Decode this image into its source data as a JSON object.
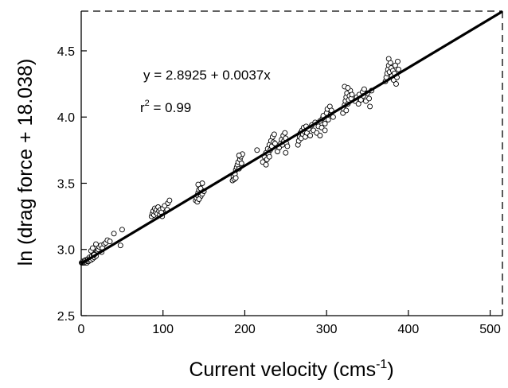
{
  "chart_data": {
    "type": "scatter",
    "xlabel": "Current velocity (cms",
    "xlabel_sup": "-1",
    "xlabel_end": ")",
    "ylabel": "ln (drag force + 18.038)",
    "xlim": [
      0,
      515
    ],
    "ylim": [
      2.5,
      4.8
    ],
    "x_ticks": [
      0,
      100,
      200,
      300,
      400,
      500
    ],
    "y_ticks": [
      2.5,
      3.0,
      3.5,
      4.0,
      4.5
    ],
    "x_tick_labels": [
      "0",
      "100",
      "200",
      "300",
      "400",
      "500"
    ],
    "y_tick_labels": [
      "2.5",
      "3.0",
      "3.5",
      "4.0",
      "4.5"
    ],
    "annotations": {
      "equation": "y = 2.8925 + 0.0037x",
      "r2_prefix": "r",
      "r2_sup": "2",
      "r2_value": " = 0.99"
    },
    "regression": {
      "intercept": 2.8925,
      "slope": 0.0037
    },
    "series": [
      {
        "style": "open-circle",
        "points": [
          [
            0.5,
            2.9
          ],
          [
            1,
            2.9
          ],
          [
            1.5,
            2.9
          ],
          [
            2,
            2.91
          ],
          [
            2.5,
            2.9
          ],
          [
            3,
            2.9
          ],
          [
            3.5,
            2.91
          ],
          [
            4,
            2.9
          ],
          [
            4.5,
            2.91
          ],
          [
            5,
            2.92
          ],
          [
            5.5,
            2.9
          ],
          [
            6,
            2.91
          ],
          [
            6.5,
            2.92
          ],
          [
            7,
            2.9
          ],
          [
            7.5,
            2.91
          ],
          [
            8,
            2.92
          ],
          [
            8.5,
            2.93
          ],
          [
            9,
            2.91
          ],
          [
            9.5,
            2.92
          ],
          [
            10,
            2.94
          ],
          [
            11,
            2.93
          ],
          [
            12,
            2.92
          ],
          [
            13,
            2.95
          ],
          [
            14,
            2.93
          ],
          [
            15,
            2.96
          ],
          [
            16,
            2.94
          ],
          [
            17,
            2.97
          ],
          [
            18,
            2.95
          ],
          [
            19,
            2.98
          ],
          [
            20,
            2.99
          ],
          [
            21,
            3.0
          ],
          [
            22,
            3.02
          ],
          [
            24,
            3.03
          ],
          [
            26,
            3.01
          ],
          [
            28,
            3.04
          ],
          [
            30,
            3.05
          ],
          [
            32,
            3.07
          ],
          [
            35,
            3.06
          ],
          [
            40,
            3.12
          ],
          [
            48,
            3.03
          ],
          [
            50,
            3.15
          ],
          [
            12,
            2.99
          ],
          [
            14,
            3.01
          ],
          [
            16,
            2.96
          ],
          [
            18,
            3.04
          ],
          [
            25,
            2.98
          ],
          [
            86,
            3.25
          ],
          [
            87,
            3.27
          ],
          [
            88,
            3.29
          ],
          [
            89,
            3.26
          ],
          [
            90,
            3.31
          ],
          [
            91,
            3.28
          ],
          [
            92,
            3.3
          ],
          [
            93,
            3.27
          ],
          [
            94,
            3.32
          ],
          [
            95,
            3.29
          ],
          [
            96,
            3.26
          ],
          [
            97,
            3.3
          ],
          [
            98,
            3.28
          ],
          [
            100,
            3.31
          ],
          [
            102,
            3.33
          ],
          [
            104,
            3.29
          ],
          [
            106,
            3.35
          ],
          [
            108,
            3.37
          ],
          [
            105,
            3.3
          ],
          [
            99,
            3.25
          ],
          [
            140,
            3.37
          ],
          [
            141,
            3.39
          ],
          [
            142,
            3.41
          ],
          [
            143,
            3.43
          ],
          [
            144,
            3.45
          ],
          [
            145,
            3.48
          ],
          [
            146,
            3.4
          ],
          [
            147,
            3.44
          ],
          [
            148,
            3.5
          ],
          [
            142,
            3.36
          ],
          [
            144,
            3.38
          ],
          [
            146,
            3.46
          ],
          [
            148,
            3.42
          ],
          [
            150,
            3.44
          ],
          [
            143,
            3.49
          ],
          [
            185,
            3.52
          ],
          [
            186,
            3.55
          ],
          [
            187,
            3.53
          ],
          [
            188,
            3.57
          ],
          [
            189,
            3.6
          ],
          [
            190,
            3.62
          ],
          [
            191,
            3.64
          ],
          [
            192,
            3.66
          ],
          [
            193,
            3.61
          ],
          [
            194,
            3.68
          ],
          [
            195,
            3.7
          ],
          [
            196,
            3.65
          ],
          [
            197,
            3.72
          ],
          [
            193,
            3.71
          ],
          [
            189,
            3.54
          ],
          [
            222,
            3.66
          ],
          [
            224,
            3.7
          ],
          [
            226,
            3.73
          ],
          [
            227,
            3.68
          ],
          [
            228,
            3.76
          ],
          [
            229,
            3.72
          ],
          [
            230,
            3.79
          ],
          [
            231,
            3.75
          ],
          [
            232,
            3.82
          ],
          [
            233,
            3.78
          ],
          [
            234,
            3.85
          ],
          [
            235,
            3.81
          ],
          [
            236,
            3.87
          ],
          [
            237,
            3.8
          ],
          [
            226,
            3.64
          ],
          [
            230,
            3.7
          ],
          [
            215,
            3.75
          ],
          [
            240,
            3.74
          ],
          [
            242,
            3.77
          ],
          [
            244,
            3.8
          ],
          [
            245,
            3.83
          ],
          [
            246,
            3.79
          ],
          [
            247,
            3.86
          ],
          [
            248,
            3.82
          ],
          [
            249,
            3.88
          ],
          [
            250,
            3.84
          ],
          [
            251,
            3.8
          ],
          [
            252,
            3.78
          ],
          [
            250,
            3.73
          ],
          [
            265,
            3.79
          ],
          [
            266,
            3.82
          ],
          [
            267,
            3.85
          ],
          [
            268,
            3.88
          ],
          [
            269,
            3.84
          ],
          [
            270,
            3.9
          ],
          [
            271,
            3.87
          ],
          [
            272,
            3.92
          ],
          [
            273,
            3.89
          ],
          [
            274,
            3.85
          ],
          [
            275,
            3.93
          ],
          [
            276,
            3.88
          ],
          [
            278,
            3.91
          ],
          [
            280,
            3.86
          ],
          [
            282,
            3.94
          ],
          [
            284,
            3.9
          ],
          [
            286,
            3.96
          ],
          [
            288,
            3.88
          ],
          [
            290,
            3.93
          ],
          [
            292,
            3.97
          ],
          [
            294,
            3.92
          ],
          [
            295,
            3.99
          ],
          [
            296,
            4.01
          ],
          [
            298,
            3.95
          ],
          [
            300,
            4.03
          ],
          [
            301,
            4.06
          ],
          [
            302,
            3.98
          ],
          [
            304,
            4.08
          ],
          [
            305,
            4.02
          ],
          [
            306,
            4.05
          ],
          [
            308,
            4.0
          ],
          [
            292,
            3.86
          ],
          [
            298,
            3.9
          ],
          [
            320,
            4.03
          ],
          [
            321,
            4.06
          ],
          [
            322,
            4.09
          ],
          [
            323,
            4.12
          ],
          [
            324,
            4.15
          ],
          [
            325,
            4.18
          ],
          [
            326,
            4.1
          ],
          [
            327,
            4.13
          ],
          [
            328,
            4.16
          ],
          [
            329,
            4.2
          ],
          [
            330,
            4.14
          ],
          [
            331,
            4.17
          ],
          [
            322,
            4.23
          ],
          [
            326,
            4.22
          ],
          [
            324,
            4.05
          ],
          [
            335,
            4.12
          ],
          [
            337,
            4.15
          ],
          [
            339,
            4.1
          ],
          [
            340,
            4.17
          ],
          [
            342,
            4.13
          ],
          [
            344,
            4.19
          ],
          [
            345,
            4.16
          ],
          [
            346,
            4.21
          ],
          [
            348,
            4.12
          ],
          [
            350,
            4.18
          ],
          [
            352,
            4.14
          ],
          [
            353,
            4.08
          ],
          [
            355,
            4.2
          ],
          [
            372,
            4.27
          ],
          [
            373,
            4.3
          ],
          [
            374,
            4.33
          ],
          [
            375,
            4.36
          ],
          [
            376,
            4.39
          ],
          [
            377,
            4.34
          ],
          [
            378,
            4.41
          ],
          [
            379,
            4.37
          ],
          [
            380,
            4.31
          ],
          [
            381,
            4.35
          ],
          [
            382,
            4.28
          ],
          [
            383,
            4.33
          ],
          [
            384,
            4.39
          ],
          [
            385,
            4.25
          ],
          [
            386,
            4.3
          ],
          [
            388,
            4.36
          ],
          [
            387,
            4.42
          ],
          [
            376,
            4.44
          ]
        ]
      }
    ],
    "grid": false,
    "legend": "none"
  }
}
